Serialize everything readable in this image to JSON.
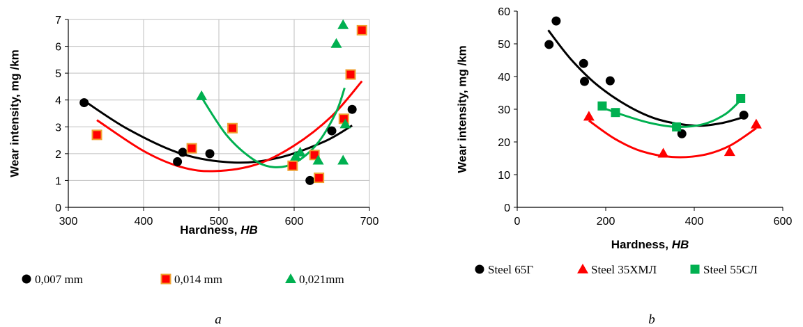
{
  "colors": {
    "black": "#000000",
    "red": "#ff0000",
    "green": "#00b050",
    "grid": "#bfbfbf",
    "axis": "#000000"
  },
  "chart_data": [
    {
      "panel": "a",
      "type": "scatter",
      "xlabel": {
        "text": "Hardness, ",
        "italic": "HB"
      },
      "ylabel": "Wear intensity, mg /km",
      "xlim": [
        300,
        700
      ],
      "ylim": [
        0,
        7
      ],
      "xticks": [
        300,
        400,
        500,
        600,
        700
      ],
      "yticks": [
        0,
        1,
        2,
        3,
        4,
        5,
        6,
        7
      ],
      "grid": true,
      "legend_position": "bottom",
      "trendlines": "polynomial (2nd order) per series",
      "series": [
        {
          "name": "0,007 mm",
          "marker": "circle",
          "color": "#000000",
          "x": [
            321,
            445,
            452,
            488,
            621,
            650,
            677
          ],
          "y": [
            3.9,
            1.7,
            2.05,
            2.0,
            1.0,
            2.85,
            3.65
          ],
          "trend": {
            "from": 322,
            "to": 677,
            "points": [
              [
                322,
                3.95
              ],
              [
                380,
                2.9
              ],
              [
                450,
                2.0
              ],
              [
                520,
                1.67
              ],
              [
                580,
                1.85
              ],
              [
                640,
                2.45
              ],
              [
                677,
                3.05
              ]
            ]
          }
        },
        {
          "name": "0,014 mm",
          "marker": "square",
          "color": "#ff0000",
          "edge": "#f0a030",
          "x": [
            338,
            464,
            518,
            598,
            627,
            633,
            666,
            675,
            690
          ],
          "y": [
            2.7,
            2.2,
            2.95,
            1.55,
            1.95,
            1.1,
            3.3,
            4.95,
            6.6
          ],
          "trend": {
            "from": 338,
            "to": 690,
            "points": [
              [
                338,
                3.25
              ],
              [
                400,
                2.1
              ],
              [
                450,
                1.5
              ],
              [
                495,
                1.35
              ],
              [
                550,
                1.6
              ],
              [
                600,
                2.3
              ],
              [
                650,
                3.4
              ],
              [
                690,
                4.7
              ]
            ]
          }
        },
        {
          "name": "0,021mm",
          "marker": "triangle",
          "color": "#00b050",
          "x": [
            477,
            602,
            608,
            632,
            656,
            665,
            665,
            668
          ],
          "y": [
            4.15,
            1.9,
            2.05,
            1.75,
            6.1,
            1.75,
            6.8,
            3.1
          ],
          "trend": {
            "from": 477,
            "to": 667,
            "points": [
              [
                477,
                4.1
              ],
              [
                510,
                2.7
              ],
              [
                545,
                1.8
              ],
              [
                572,
                1.5
              ],
              [
                600,
                1.65
              ],
              [
                630,
                2.35
              ],
              [
                655,
                3.5
              ],
              [
                667,
                4.45
              ]
            ]
          }
        }
      ],
      "panel_label": "a"
    },
    {
      "panel": "b",
      "type": "scatter",
      "xlabel": {
        "text": "Hardness, ",
        "italic": "HB"
      },
      "ylabel": "Wear intensity, mg /km",
      "xlim": [
        0,
        600
      ],
      "ylim": [
        0,
        60
      ],
      "xticks": [
        0,
        200,
        400,
        600
      ],
      "yticks": [
        0,
        10,
        20,
        30,
        40,
        50,
        60
      ],
      "grid": false,
      "legend_position": "bottom",
      "trendlines": "polynomial (2nd order) per series",
      "series": [
        {
          "name": "Steel 65Г",
          "marker": "circle",
          "color": "#000000",
          "x": [
            72,
            88,
            150,
            152,
            210,
            372,
            512
          ],
          "y": [
            49.8,
            57.0,
            44.0,
            38.5,
            38.7,
            22.5,
            28.2
          ],
          "trend": {
            "from": 70,
            "to": 512,
            "points": [
              [
                70,
                54.2
              ],
              [
                120,
                45.5
              ],
              [
                180,
                37.5
              ],
              [
                250,
                31.0
              ],
              [
                320,
                26.8
              ],
              [
                400,
                25.0
              ],
              [
                460,
                25.7
              ],
              [
                512,
                27.6
              ]
            ]
          }
        },
        {
          "name": "Steel 35ХМЛ",
          "marker": "triangle",
          "color": "#ff0000",
          "x": [
            162,
            330,
            480,
            540
          ],
          "y": [
            27.8,
            16.5,
            17.0,
            25.4
          ],
          "trend": {
            "from": 162,
            "to": 540,
            "points": [
              [
                162,
                26.5
              ],
              [
                220,
                21.0
              ],
              [
                280,
                17.2
              ],
              [
                350,
                15.4
              ],
              [
                420,
                16.0
              ],
              [
                480,
                18.8
              ],
              [
                540,
                24.2
              ]
            ]
          }
        },
        {
          "name": "Steel 55СЛ",
          "marker": "square",
          "color": "#00b050",
          "x": [
            192,
            222,
            360,
            505
          ],
          "y": [
            31.0,
            29.0,
            24.6,
            33.3
          ],
          "trend": {
            "from": 192,
            "to": 505,
            "points": [
              [
                192,
                30.5
              ],
              [
                240,
                28.2
              ],
              [
                300,
                25.8
              ],
              [
                360,
                24.6
              ],
              [
                420,
                25.4
              ],
              [
                470,
                28.5
              ],
              [
                505,
                32.8
              ]
            ]
          }
        }
      ],
      "panel_label": "b"
    }
  ]
}
